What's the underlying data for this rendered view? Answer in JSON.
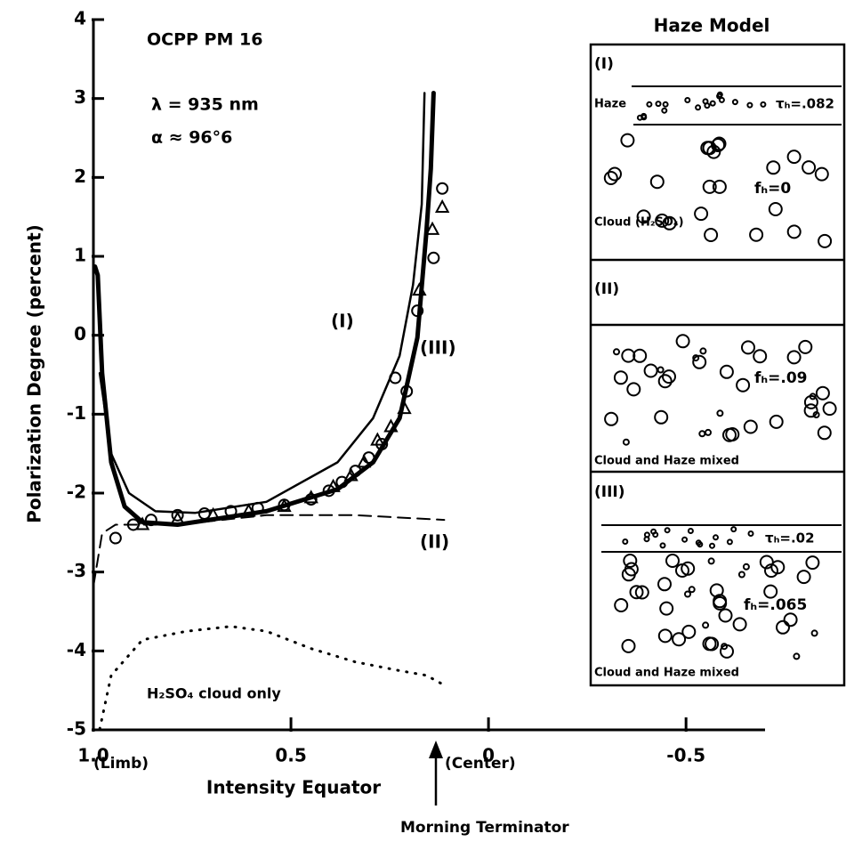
{
  "chart_data": {
    "type": "line",
    "x_label": "Intensity Equator",
    "y_label": "Polarization Degree (percent)",
    "xlim": [
      1.0,
      -0.7
    ],
    "ylim": [
      -5,
      4
    ],
    "xticks": [
      {
        "value": 1,
        "label": "1.0"
      },
      0.5,
      0,
      -0.5
    ],
    "yticks": [
      4,
      3,
      2,
      1,
      0,
      -1,
      -2,
      -3,
      -4,
      -5
    ],
    "annotations": [
      "OCPP  PM 16",
      "λ = 935 nm",
      "α ≈ 96°6",
      "(Limb)",
      "(Center)",
      "Morning Terminator"
    ],
    "series": [
      {
        "name": "(I)",
        "type": "line",
        "style": "solid",
        "width": 2.5,
        "color": "#000000",
        "x": [
          0.984,
          0.955,
          0.91,
          0.843,
          0.742,
          0.562,
          0.382,
          0.292,
          0.225,
          0.191,
          0.169,
          0.162
        ],
        "values": [
          -0.48,
          -1.5,
          -2.0,
          -2.23,
          -2.25,
          -2.11,
          -1.61,
          -1.05,
          -0.26,
          0.64,
          1.66,
          3.07
        ]
      },
      {
        "name": "(III)",
        "type": "line",
        "style": "solid",
        "width": 5,
        "color": "#000000",
        "x": [
          0.996,
          0.989,
          0.978,
          0.955,
          0.921,
          0.876,
          0.787,
          0.562,
          0.382,
          0.292,
          0.225,
          0.18,
          0.157,
          0.146,
          0.139
        ],
        "values": [
          0.87,
          0.76,
          -0.48,
          -1.61,
          -2.17,
          -2.37,
          -2.4,
          -2.23,
          -1.95,
          -1.61,
          -1.05,
          -0.03,
          1.32,
          2.11,
          3.07
        ]
      },
      {
        "name": "(II)",
        "type": "line",
        "style": "dashed",
        "width": 2,
        "color": "#000000",
        "x": [
          1.0,
          0.978,
          0.944,
          0.787,
          0.562,
          0.337,
          0.112
        ],
        "values": [
          -3.18,
          -2.51,
          -2.4,
          -2.4,
          -2.28,
          -2.28,
          -2.34
        ]
      },
      {
        "name": "H₂SO₄ cloud only",
        "type": "line",
        "style": "dotted",
        "width": 3,
        "color": "#000000",
        "x": [
          0.984,
          0.955,
          0.876,
          0.764,
          0.652,
          0.562,
          0.449,
          0.337,
          0.225,
          0.157,
          0.117
        ],
        "values": [
          -4.99,
          -4.31,
          -3.86,
          -3.75,
          -3.69,
          -3.75,
          -3.97,
          -4.14,
          -4.25,
          -4.31,
          -4.42
        ]
      },
      {
        "type": "scatter",
        "marker": "circle",
        "color": "#000000",
        "x": [
          0.944,
          0.899,
          0.854,
          0.787,
          0.719,
          0.652,
          0.584,
          0.517,
          0.449,
          0.404,
          0.371,
          0.337,
          0.303,
          0.27,
          0.236,
          0.207,
          0.18,
          0.139,
          0.117
        ],
        "values": [
          -2.57,
          -2.4,
          -2.34,
          -2.28,
          -2.26,
          -2.23,
          -2.19,
          -2.15,
          -2.08,
          -1.97,
          -1.86,
          -1.72,
          -1.55,
          -1.38,
          -0.54,
          -0.71,
          0.31,
          0.98,
          1.86
        ]
      },
      {
        "type": "scatter",
        "marker": "triangle",
        "color": "#000000",
        "x": [
          0.876,
          0.787,
          0.697,
          0.607,
          0.517,
          0.449,
          0.393,
          0.348,
          0.315,
          0.281,
          0.247,
          0.213,
          0.175,
          0.142,
          0.117
        ],
        "values": [
          -2.4,
          -2.33,
          -2.28,
          -2.23,
          -2.17,
          -2.06,
          -1.92,
          -1.78,
          -1.61,
          -1.33,
          -1.16,
          -0.93,
          0.57,
          1.34,
          1.62
        ]
      }
    ]
  },
  "haze_model": {
    "title": "Haze Model",
    "panels": [
      {
        "label": "(I)",
        "haze": "Haze",
        "tau": "τₕ=.082",
        "f": "fₕ=0",
        "caption": "Cloud (H₂SO₄)"
      },
      {
        "label": "(II)",
        "f": "fₕ=.09",
        "caption": "Cloud and Haze mixed"
      },
      {
        "label": "(III)",
        "tau": "τₕ=.02",
        "f": "fₕ=.065",
        "caption": "Cloud and Haze mixed"
      }
    ]
  }
}
